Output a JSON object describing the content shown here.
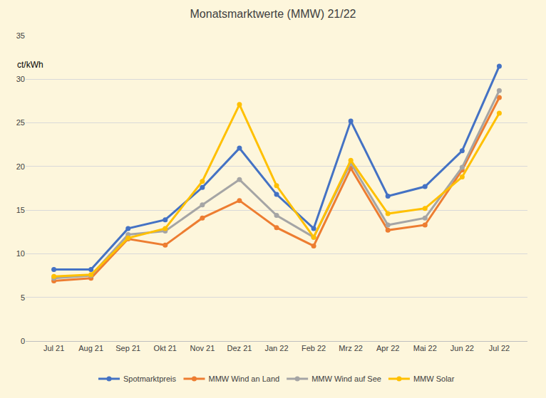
{
  "chart_data": {
    "type": "line",
    "title": "Monatsmarktwerte (MMW) 21/22",
    "ylabel": "ct/kWh",
    "categories": [
      "Jul 21",
      "Aug 21",
      "Sep 21",
      "Okt 21",
      "Nov 21",
      "Dez 21",
      "Jan 22",
      "Feb 22",
      "Mrz 22",
      "Apr 22",
      "Mai 22",
      "Jun 22",
      "Jul 22"
    ],
    "series": [
      {
        "name": "Spotmarktpreis",
        "color": "#4472c4",
        "values": [
          8.2,
          8.2,
          12.9,
          13.9,
          17.6,
          22.1,
          16.8,
          12.9,
          25.2,
          16.6,
          17.7,
          21.8,
          31.5
        ]
      },
      {
        "name": "MMW Wind an Land",
        "color": "#ed7d31",
        "values": [
          6.9,
          7.2,
          11.7,
          11.0,
          14.1,
          16.1,
          13.0,
          10.9,
          19.8,
          12.7,
          13.3,
          19.6,
          27.9
        ]
      },
      {
        "name": "MMW Wind auf See",
        "color": "#a5a5a5",
        "values": [
          7.2,
          7.5,
          12.2,
          12.6,
          15.6,
          18.5,
          14.4,
          11.9,
          20.4,
          13.3,
          14.1,
          19.9,
          28.7
        ]
      },
      {
        "name": "MMW Solar",
        "color": "#ffc000",
        "values": [
          7.4,
          7.6,
          11.8,
          12.9,
          18.3,
          27.1,
          17.8,
          11.9,
          20.7,
          14.6,
          15.2,
          18.8,
          26.1
        ]
      }
    ],
    "ylim": [
      0,
      35
    ],
    "yticks": [
      0,
      5,
      10,
      15,
      20,
      25,
      30,
      35
    ],
    "grid": true,
    "legend": "bottom",
    "marker": "circle"
  }
}
